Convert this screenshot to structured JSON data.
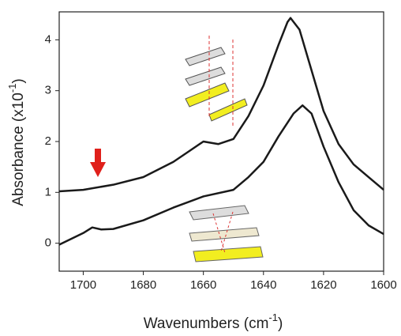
{
  "chart_data": {
    "type": "line",
    "x_label": {
      "text": "Wavenumbers (cm",
      "superscript": "-1",
      "suffix": ")"
    },
    "y_label": {
      "text": "Absorbance (x10",
      "superscript": "-1",
      "suffix": ")"
    },
    "series": [
      {
        "color": "#1a1a1a",
        "x": [
          1708,
          1700,
          1690,
          1680,
          1670,
          1665,
          1660,
          1655,
          1650,
          1645,
          1640,
          1635,
          1632,
          1631,
          1628,
          1625,
          1620,
          1615,
          1610,
          1605,
          1600
        ],
        "values": [
          1.02,
          1.05,
          1.15,
          1.3,
          1.6,
          1.8,
          2.0,
          1.95,
          2.05,
          2.5,
          3.1,
          3.9,
          4.35,
          4.43,
          4.2,
          3.6,
          2.6,
          1.95,
          1.55,
          1.3,
          1.05
        ]
      },
      {
        "color": "#1a1a1a",
        "x": [
          1708,
          1700,
          1697,
          1694,
          1690,
          1680,
          1670,
          1660,
          1650,
          1645,
          1640,
          1635,
          1630,
          1627,
          1624,
          1620,
          1615,
          1610,
          1605,
          1600
        ],
        "values": [
          -0.03,
          0.2,
          0.31,
          0.27,
          0.28,
          0.45,
          0.7,
          0.92,
          1.05,
          1.3,
          1.6,
          2.1,
          2.55,
          2.71,
          2.55,
          1.9,
          1.2,
          0.65,
          0.35,
          0.18
        ]
      }
    ],
    "xlim": [
      1708,
      1600
    ],
    "xticks": [
      1700,
      1680,
      1660,
      1640,
      1620,
      1600
    ],
    "ylim": [
      -0.55,
      4.55
    ],
    "yticks": [
      0,
      1,
      2,
      3,
      4
    ]
  }
}
